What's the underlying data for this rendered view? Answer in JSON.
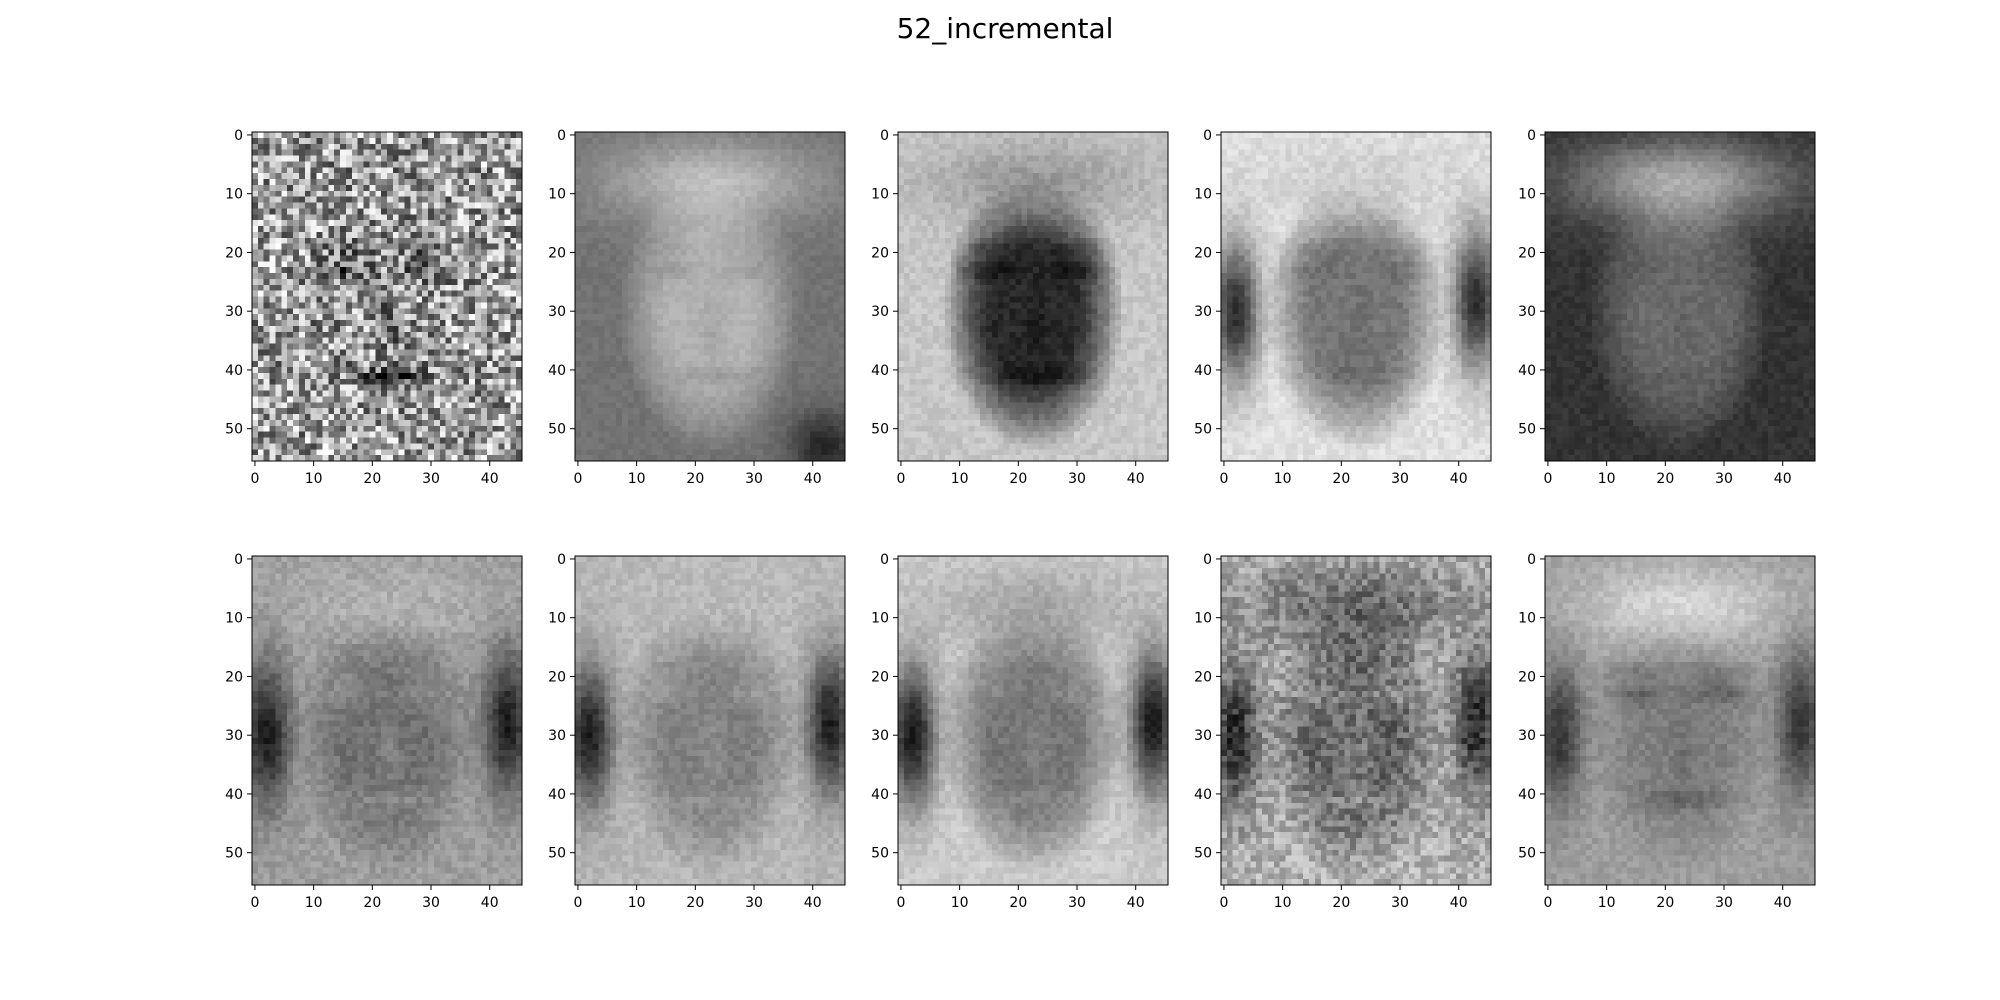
{
  "figure": {
    "title": "52_incremental"
  },
  "chart_data": {
    "type": "heatmap",
    "title": "52_incremental",
    "layout": {
      "rows": 2,
      "cols": 5
    },
    "colormap": "gray",
    "image_shape": [
      56,
      46
    ],
    "xticks": [
      0,
      10,
      20,
      30,
      40
    ],
    "yticks": [
      0,
      10,
      20,
      30,
      40,
      50
    ],
    "xlim": [
      -0.5,
      45.5
    ],
    "ylim": [
      55.5,
      -0.5
    ],
    "panels": [
      {
        "index": 0,
        "variant": "noisy",
        "bg": 0.62,
        "face": 0.6,
        "hair": 0.58,
        "features": 0.18,
        "noise": 0.38
      },
      {
        "index": 1,
        "variant": "mean",
        "bg": 0.45,
        "face": 0.7,
        "hair": 0.82,
        "features": 0.58,
        "noise": 0.03,
        "corner_dark": 0.15
      },
      {
        "index": 2,
        "variant": "dark",
        "bg": 0.78,
        "face": 0.16,
        "hair": 0.55,
        "features": 0.05,
        "noise": 0.05
      },
      {
        "index": 3,
        "variant": "ring",
        "bg": 0.88,
        "face": 0.46,
        "hair": 0.8,
        "features": 0.4,
        "noise": 0.05,
        "side_dark": 0.18
      },
      {
        "index": 4,
        "variant": "frame",
        "bg": 0.2,
        "face": 0.42,
        "hair": 0.8,
        "features": 0.34,
        "noise": 0.04
      },
      {
        "index": 5,
        "variant": "soft",
        "bg": 0.62,
        "face": 0.44,
        "hair": 0.72,
        "features": 0.6,
        "noise": 0.06,
        "side_dark": 0.12
      },
      {
        "index": 6,
        "variant": "soft",
        "bg": 0.72,
        "face": 0.5,
        "hair": 0.74,
        "features": 0.62,
        "noise": 0.05,
        "side_dark": 0.12
      },
      {
        "index": 7,
        "variant": "soft",
        "bg": 0.8,
        "face": 0.46,
        "hair": 0.62,
        "features": 0.56,
        "noise": 0.05,
        "side_dark": 0.1
      },
      {
        "index": 8,
        "variant": "textured",
        "bg": 0.7,
        "face": 0.4,
        "hair": 0.32,
        "features": 0.62,
        "noise": 0.14,
        "side_dark": 0.16
      },
      {
        "index": 9,
        "variant": "bright-top",
        "bg": 0.62,
        "face": 0.5,
        "hair": 0.9,
        "features": 0.34,
        "noise": 0.05,
        "side_dark": 0.22
      }
    ]
  }
}
